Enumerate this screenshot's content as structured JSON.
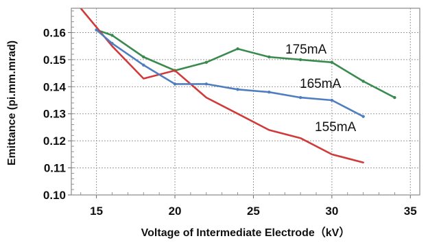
{
  "chart_data": {
    "type": "line",
    "xlabel": "Voltage of Intermediate Electrode（kV）",
    "ylabel": "Emittance (pi.mm.mrad)",
    "xlim": [
      13.4,
      35.6
    ],
    "ylim": [
      0.1,
      0.169
    ],
    "xticks": [
      "15",
      "20",
      "25",
      "30",
      "35"
    ],
    "yticks": [
      "0.10",
      "0.11",
      "0.12",
      "0.13",
      "0.14",
      "0.15",
      "0.16"
    ],
    "grid": true,
    "series": [
      {
        "name": "175mA",
        "color": "#3a8a4e",
        "x": [
          15,
          16,
          18,
          20,
          22,
          24,
          26,
          28,
          30,
          32,
          34
        ],
        "y": [
          0.161,
          0.159,
          0.151,
          0.146,
          0.149,
          0.154,
          0.151,
          0.15,
          0.149,
          0.142,
          0.136
        ],
        "markers": true
      },
      {
        "name": "165mA",
        "color": "#d13a3a",
        "x": [
          14,
          15,
          16,
          18,
          20,
          22,
          24,
          26,
          28,
          30,
          32
        ],
        "y": [
          0.169,
          0.162,
          0.155,
          0.143,
          0.146,
          0.136,
          0.13,
          0.124,
          0.121,
          0.115,
          0.112
        ],
        "markers": false
      },
      {
        "name": "155mA",
        "color": "#4f7ec0",
        "x": [
          15,
          16,
          18,
          20,
          22,
          24,
          26,
          28,
          30,
          32
        ],
        "y": [
          0.161,
          0.156,
          0.148,
          0.141,
          0.141,
          0.139,
          0.138,
          0.136,
          0.135,
          0.129
        ],
        "markers": true
      }
    ]
  }
}
